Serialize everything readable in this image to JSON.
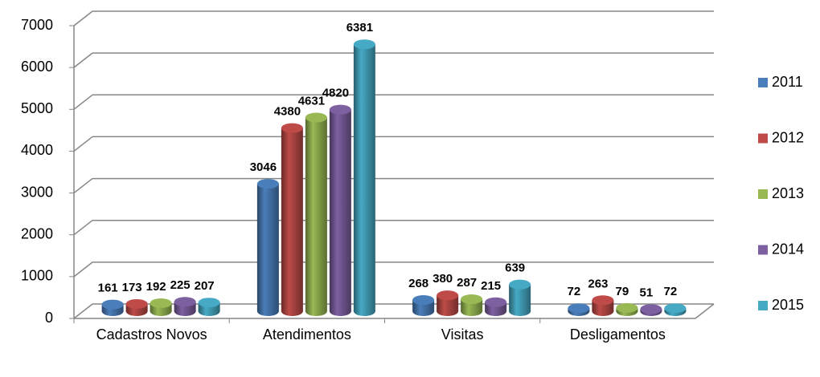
{
  "chart_data": {
    "type": "bar3d",
    "categories": [
      "Cadastros Novos",
      "Atendimentos",
      "Visitas",
      "Desligamentos"
    ],
    "series": [
      {
        "name": "2011",
        "color": "#4a7ebb",
        "values": [
          161,
          3046,
          268,
          72
        ]
      },
      {
        "name": "2012",
        "color": "#be4b48",
        "values": [
          173,
          4380,
          380,
          263
        ]
      },
      {
        "name": "2013",
        "color": "#98b954",
        "values": [
          192,
          4631,
          287,
          79
        ]
      },
      {
        "name": "2014",
        "color": "#7d60a0",
        "values": [
          225,
          4820,
          215,
          51
        ]
      },
      {
        "name": "2015",
        "color": "#46aac5",
        "values": [
          207,
          6381,
          639,
          72
        ]
      }
    ],
    "ylim": [
      0,
      7000
    ],
    "yticks": [
      0,
      1000,
      2000,
      3000,
      4000,
      5000,
      6000,
      7000
    ],
    "grid": true,
    "legend": "right"
  }
}
